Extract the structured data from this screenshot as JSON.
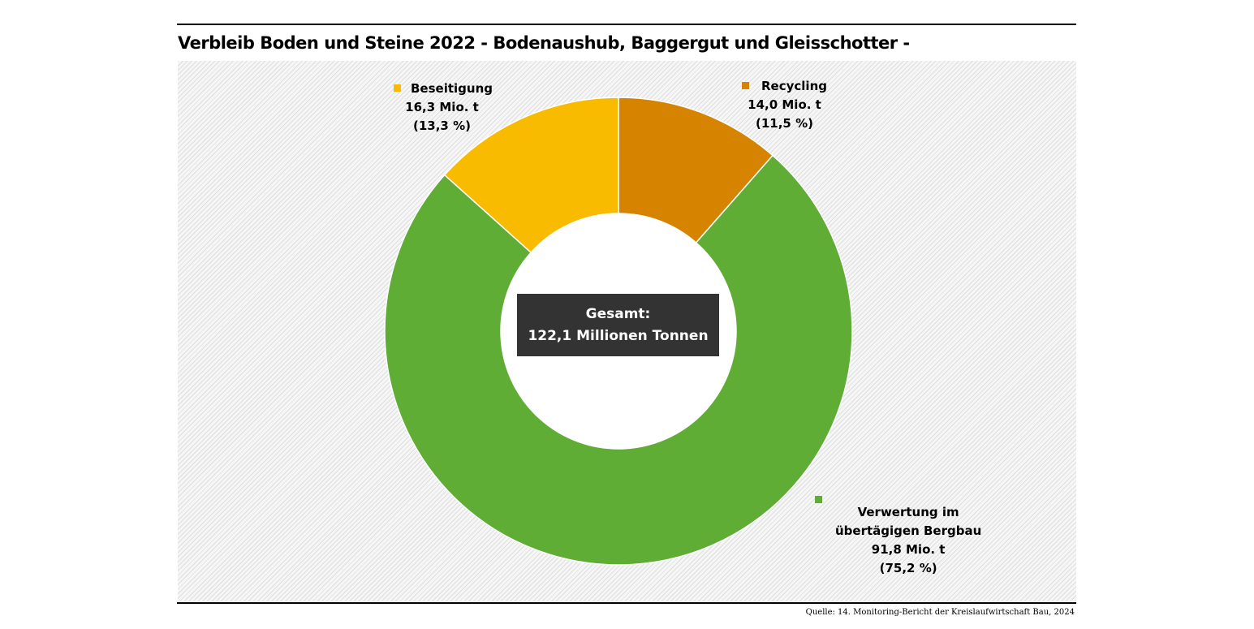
{
  "chart_data": {
    "type": "pie",
    "title": "Verbleib Boden und Steine 2022 - Bodenaushub, Baggergut und Gleisschotter -",
    "slices": [
      {
        "name": "Recycling",
        "value": 14.0,
        "value_text": "14,0 Mio. t",
        "percent_text": "(11,5 %)",
        "color": "#d68400"
      },
      {
        "name": "Verwertung im übertägigen Bergbau",
        "line1": "Verwertung im",
        "line2": "übertägigen Bergbau",
        "value": 91.8,
        "value_text": "91,8 Mio. t",
        "percent_text": "(75,2 %)",
        "color": "#5fad35"
      },
      {
        "name": "Beseitigung",
        "value": 16.3,
        "value_text": "16,3 Mio. t",
        "percent_text": "(13,3 %)",
        "color": "#f9bb00"
      }
    ],
    "total": {
      "label": "Gesamt:",
      "value_text": "122,1 Millionen Tonnen"
    }
  },
  "source": "Quelle: 14. Monitoring-Bericht der Kreislaufwirtschaft Bau, 2024"
}
